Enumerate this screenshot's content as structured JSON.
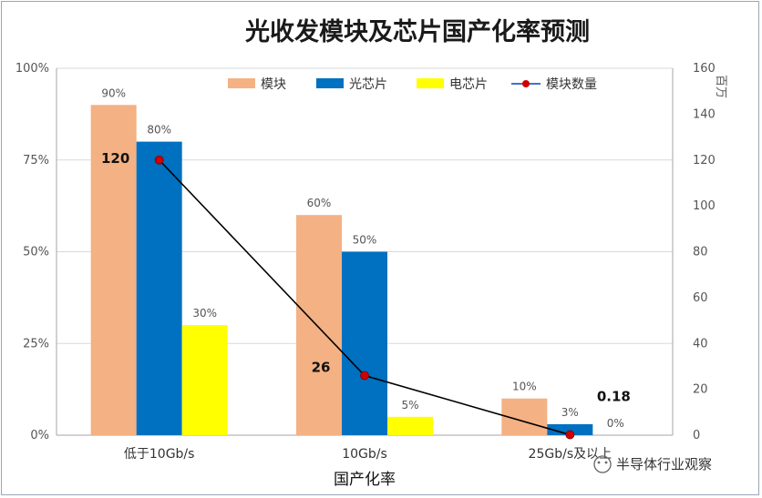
{
  "watermark": "半导体行业观察",
  "colors": {
    "module": "#F4B183",
    "optical_chip": "#0070C0",
    "electrical_chip": "#FFFF00",
    "line": "#000000",
    "marker": "#D00000",
    "grid": "#D9D9D9",
    "axis": "#A6A6A6"
  },
  "chart_data": {
    "type": "bar",
    "title": "光收发模块及芯片国产化率预测",
    "xlabel": "国产化率",
    "ylabel": "",
    "y2label": "百万",
    "categories": [
      "低于10Gb/s",
      "10Gb/s",
      "25Gb/s及以上"
    ],
    "ylim": [
      0,
      100
    ],
    "y_ticks": [
      "0%",
      "25%",
      "50%",
      "75%",
      "100%"
    ],
    "y2lim": [
      0,
      160
    ],
    "y2_ticks": [
      "0",
      "20",
      "40",
      "60",
      "80",
      "100",
      "120",
      "140",
      "160"
    ],
    "legend_position": "top-right",
    "grid": true,
    "series": [
      {
        "name": "模块",
        "type": "bar",
        "color": "#F4B183",
        "values": [
          90,
          60,
          10
        ],
        "labels": [
          "90%",
          "60%",
          "10%"
        ]
      },
      {
        "name": "光芯片",
        "type": "bar",
        "color": "#0070C0",
        "values": [
          80,
          50,
          3
        ],
        "labels": [
          "80%",
          "50%",
          "3%"
        ]
      },
      {
        "name": "电芯片",
        "type": "bar",
        "color": "#FFFF00",
        "values": [
          30,
          5,
          0
        ],
        "labels": [
          "30%",
          "5%",
          "0%"
        ]
      },
      {
        "name": "模块数量",
        "type": "line",
        "axis": "secondary",
        "color": "#000000",
        "marker": "#D00000",
        "values": [
          120,
          26,
          0.18
        ],
        "labels": [
          "120",
          "26",
          "0.18"
        ]
      }
    ]
  }
}
